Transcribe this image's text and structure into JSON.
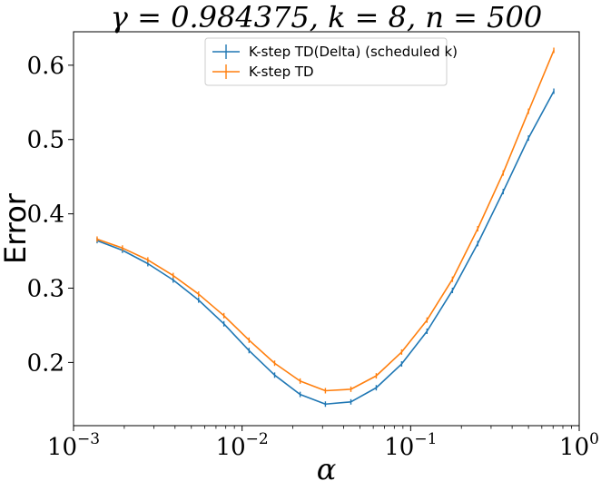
{
  "chart_data": {
    "type": "line",
    "title": "γ = 0.984375, k = 8, n = 500",
    "xlabel": "α",
    "ylabel": "Error",
    "xscale": "log",
    "xlim": [
      0.001,
      1
    ],
    "ylim": [
      0.115,
      0.645
    ],
    "x_ticks": [
      {
        "value": 0.001,
        "base": "10",
        "exp": "−3"
      },
      {
        "value": 0.01,
        "base": "10",
        "exp": "−2"
      },
      {
        "value": 0.1,
        "base": "10",
        "exp": "−1"
      },
      {
        "value": 1,
        "base": "10",
        "exp": "0"
      }
    ],
    "y_ticks": [
      {
        "value": 0.2,
        "label": "0.2"
      },
      {
        "value": 0.3,
        "label": "0.3"
      },
      {
        "value": 0.4,
        "label": "0.4"
      },
      {
        "value": 0.5,
        "label": "0.5"
      },
      {
        "value": 0.6,
        "label": "0.6"
      }
    ],
    "legend_position": "top-center",
    "x": [
      0.00138,
      0.00195,
      0.00276,
      0.0039,
      0.00552,
      0.0078,
      0.011,
      0.0156,
      0.0221,
      0.0312,
      0.0442,
      0.0625,
      0.0884,
      0.125,
      0.177,
      0.25,
      0.354,
      0.5,
      0.707
    ],
    "series": [
      {
        "name": "K-step TD(Delta) (scheduled k)",
        "color": "#1f77b4",
        "values": [
          0.364,
          0.351,
          0.333,
          0.311,
          0.284,
          0.252,
          0.216,
          0.183,
          0.157,
          0.144,
          0.147,
          0.166,
          0.198,
          0.242,
          0.297,
          0.36,
          0.43,
          0.502,
          0.565
        ]
      },
      {
        "name": "K-step TD",
        "color": "#ff7f0e",
        "values": [
          0.366,
          0.354,
          0.338,
          0.317,
          0.292,
          0.263,
          0.23,
          0.199,
          0.175,
          0.162,
          0.164,
          0.182,
          0.214,
          0.257,
          0.312,
          0.38,
          0.455,
          0.538,
          0.62
        ]
      }
    ]
  }
}
